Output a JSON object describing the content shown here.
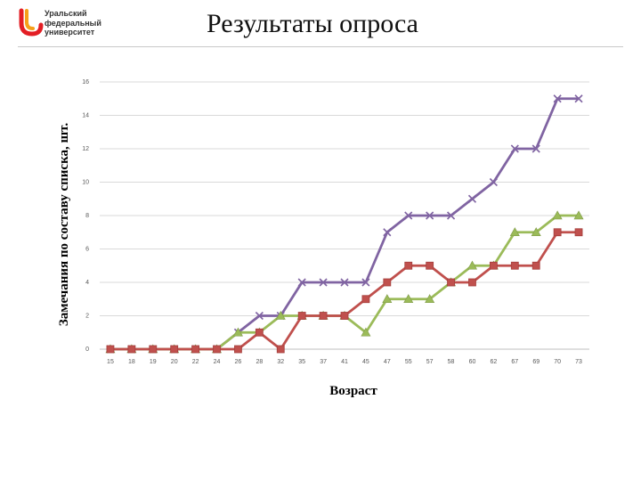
{
  "header": {
    "logo_lines": [
      "Уральский",
      "федеральный",
      "университет"
    ],
    "title": "Результаты опроса"
  },
  "colors": {
    "logo_red": "#e31e24",
    "logo_orange": "#f6a01a",
    "grid": "#d9d9d9",
    "series_red": "#c0504d",
    "series_green": "#9bbb59",
    "series_purple": "#8064a2"
  },
  "chart_data": {
    "type": "line",
    "xlabel": "Возраст",
    "ylabel": "Замечания по составу списка, шт.",
    "ylim": [
      0,
      16
    ],
    "yticks": [
      0,
      2,
      4,
      6,
      8,
      10,
      12,
      14,
      16
    ],
    "grid": true,
    "categories": [
      "15",
      "18",
      "19",
      "20",
      "22",
      "24",
      "26",
      "28",
      "32",
      "35",
      "37",
      "41",
      "45",
      "47",
      "55",
      "57",
      "58",
      "60",
      "62",
      "67",
      "69",
      "70",
      "73"
    ],
    "series": [
      {
        "marker": "square",
        "color": "#c0504d",
        "values": [
          0,
          0,
          0,
          0,
          0,
          0,
          0,
          1,
          0,
          2,
          2,
          2,
          3,
          4,
          5,
          5,
          4,
          4,
          5,
          5,
          5,
          7,
          7
        ]
      },
      {
        "marker": "triangle",
        "color": "#9bbb59",
        "values": [
          0,
          0,
          0,
          0,
          0,
          0,
          1,
          1,
          2,
          2,
          2,
          2,
          1,
          3,
          3,
          3,
          4,
          5,
          5,
          7,
          7,
          8,
          8
        ]
      },
      {
        "marker": "x",
        "color": "#8064a2",
        "values": [
          0,
          0,
          0,
          0,
          0,
          0,
          1,
          2,
          2,
          4,
          4,
          4,
          4,
          7,
          8,
          8,
          8,
          9,
          10,
          12,
          12,
          15,
          15
        ]
      }
    ]
  }
}
